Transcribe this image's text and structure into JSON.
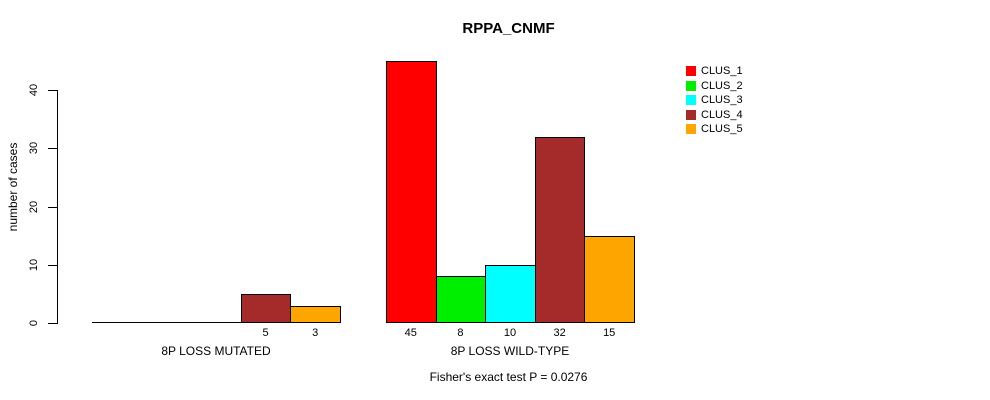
{
  "chart_data": {
    "type": "bar",
    "title": "RPPA_CNMF",
    "ylabel": "number of cases",
    "xlabel": "",
    "yticks": [
      0,
      10,
      20,
      30,
      40
    ],
    "ylim": [
      0,
      45
    ],
    "grid": false,
    "legend_position": "top-right-inside",
    "bar_border_color": "#000000",
    "series": [
      {
        "name": "CLUS_1",
        "color": "#FF0000"
      },
      {
        "name": "CLUS_2",
        "color": "#00EE00"
      },
      {
        "name": "CLUS_3",
        "color": "#00FFFF"
      },
      {
        "name": "CLUS_4",
        "color": "#A52A2A"
      },
      {
        "name": "CLUS_5",
        "color": "#FFA500"
      }
    ],
    "groups": [
      {
        "label": "8P LOSS MUTATED",
        "values": [
          0,
          0,
          0,
          5,
          3
        ]
      },
      {
        "label": "8P LOSS WILD-TYPE",
        "values": [
          45,
          8,
          10,
          32,
          15
        ]
      }
    ],
    "annotation": "Fisher's exact test P = 0.0276"
  }
}
